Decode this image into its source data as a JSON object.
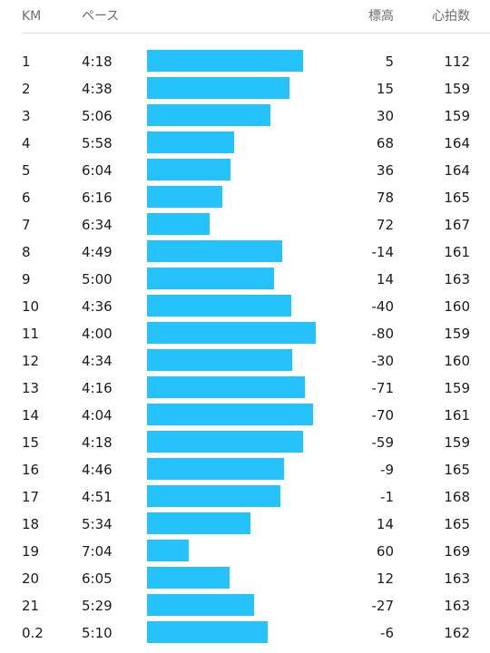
{
  "header": {
    "km": "KM",
    "pace": "ペース",
    "elevation": "標高",
    "heart_rate": "心拍数"
  },
  "colors": {
    "bar": "#26c2fb",
    "text": "#1c1c1e",
    "header_text": "#6e6e73",
    "divider": "#d9d9de"
  },
  "rows": [
    {
      "km": "1",
      "pace": "4:18",
      "elevation": "5",
      "heart_rate": "112"
    },
    {
      "km": "2",
      "pace": "4:38",
      "elevation": "15",
      "heart_rate": "159"
    },
    {
      "km": "3",
      "pace": "5:06",
      "elevation": "30",
      "heart_rate": "159"
    },
    {
      "km": "4",
      "pace": "5:58",
      "elevation": "68",
      "heart_rate": "164"
    },
    {
      "km": "5",
      "pace": "6:04",
      "elevation": "36",
      "heart_rate": "164"
    },
    {
      "km": "6",
      "pace": "6:16",
      "elevation": "78",
      "heart_rate": "165"
    },
    {
      "km": "7",
      "pace": "6:34",
      "elevation": "72",
      "heart_rate": "167"
    },
    {
      "km": "8",
      "pace": "4:49",
      "elevation": "-14",
      "heart_rate": "161"
    },
    {
      "km": "9",
      "pace": "5:00",
      "elevation": "14",
      "heart_rate": "163"
    },
    {
      "km": "10",
      "pace": "4:36",
      "elevation": "-40",
      "heart_rate": "160"
    },
    {
      "km": "11",
      "pace": "4:00",
      "elevation": "-80",
      "heart_rate": "159"
    },
    {
      "km": "12",
      "pace": "4:34",
      "elevation": "-30",
      "heart_rate": "160"
    },
    {
      "km": "13",
      "pace": "4:16",
      "elevation": "-71",
      "heart_rate": "159"
    },
    {
      "km": "14",
      "pace": "4:04",
      "elevation": "-70",
      "heart_rate": "161"
    },
    {
      "km": "15",
      "pace": "4:18",
      "elevation": "-59",
      "heart_rate": "159"
    },
    {
      "km": "16",
      "pace": "4:46",
      "elevation": "-9",
      "heart_rate": "165"
    },
    {
      "km": "17",
      "pace": "4:51",
      "elevation": "-1",
      "heart_rate": "168"
    },
    {
      "km": "18",
      "pace": "5:34",
      "elevation": "14",
      "heart_rate": "165"
    },
    {
      "km": "19",
      "pace": "7:04",
      "elevation": "60",
      "heart_rate": "169"
    },
    {
      "km": "20",
      "pace": "6:05",
      "elevation": "12",
      "heart_rate": "163"
    },
    {
      "km": "21",
      "pace": "5:29",
      "elevation": "-27",
      "heart_rate": "163"
    },
    {
      "km": "0.2",
      "pace": "5:10",
      "elevation": "-6",
      "heart_rate": "162"
    }
  ]
}
